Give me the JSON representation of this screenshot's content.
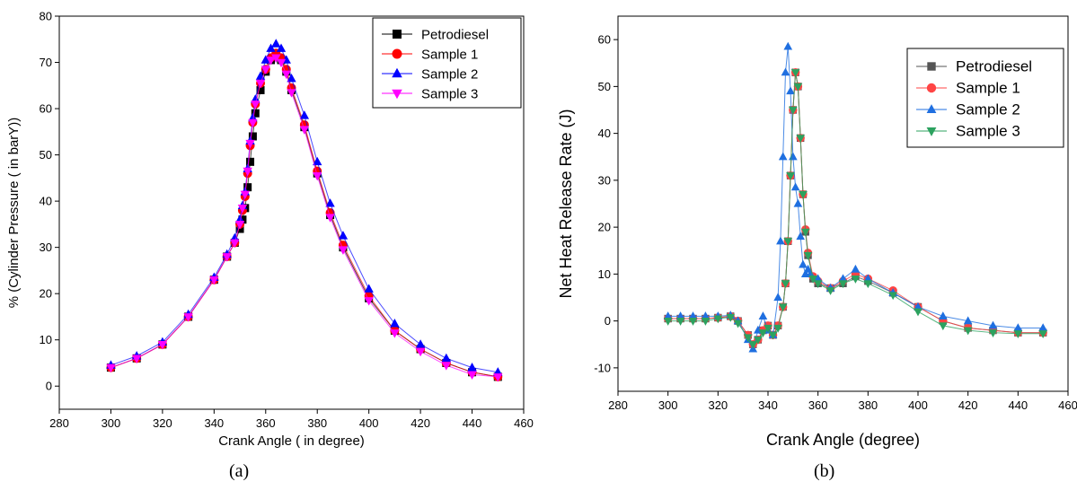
{
  "panels": {
    "a": {
      "caption": "(a)"
    },
    "b": {
      "caption": "(b)"
    }
  },
  "chart_data": [
    {
      "type": "scatter",
      "title": "",
      "xlabel": "Crank Angle ( in degree)",
      "ylabel": "% (Cylinder Pressure ( in barY))",
      "xlim": [
        280,
        460
      ],
      "ylim": [
        -5,
        80
      ],
      "xticks": [
        280,
        300,
        320,
        340,
        360,
        380,
        400,
        420,
        440,
        460
      ],
      "yticks": [
        0,
        10,
        20,
        30,
        40,
        50,
        60,
        70,
        80
      ],
      "legend_position": "top-right",
      "series": [
        {
          "name": "Petrodiesel",
          "color": "#000000",
          "marker": "square",
          "x": [
            300,
            310,
            320,
            330,
            340,
            345,
            348,
            350,
            351,
            352,
            353,
            354,
            355,
            356,
            358,
            360,
            362,
            364,
            366,
            368,
            370,
            375,
            380,
            385,
            390,
            400,
            410,
            420,
            430,
            440,
            450
          ],
          "y": [
            4,
            6,
            9,
            15,
            23,
            28,
            31,
            34,
            36,
            38.5,
            43,
            48.5,
            54,
            59,
            64,
            68,
            70.5,
            71.5,
            70.5,
            68,
            64,
            56,
            46,
            37,
            30,
            19,
            12,
            8,
            5,
            3,
            2
          ]
        },
        {
          "name": "Sample 1",
          "color": "#ff0000",
          "marker": "circle",
          "x": [
            300,
            310,
            320,
            330,
            340,
            345,
            348,
            350,
            351,
            352,
            353,
            354,
            355,
            356,
            358,
            360,
            362,
            364,
            366,
            368,
            370,
            375,
            380,
            385,
            390,
            400,
            410,
            420,
            430,
            440,
            450
          ],
          "y": [
            4,
            6,
            9,
            15,
            23,
            28,
            31,
            35,
            38,
            41,
            46,
            52,
            57,
            61,
            65.5,
            68.5,
            71,
            72,
            71,
            68.5,
            64.5,
            56.5,
            46.5,
            37.5,
            30.5,
            19.5,
            12,
            8,
            5,
            3,
            2
          ]
        },
        {
          "name": "Sample 2",
          "color": "#0000ff",
          "marker": "triangle-up",
          "x": [
            300,
            310,
            320,
            330,
            340,
            345,
            348,
            350,
            351,
            352,
            353,
            354,
            355,
            356,
            358,
            360,
            362,
            364,
            366,
            368,
            370,
            375,
            380,
            385,
            390,
            400,
            410,
            420,
            430,
            440,
            450
          ],
          "y": [
            4.5,
            6.5,
            9.5,
            15.5,
            23.5,
            28.5,
            32,
            36,
            39,
            42,
            47,
            53,
            58,
            62,
            67,
            70.5,
            73,
            74,
            73,
            70.5,
            66.5,
            58.5,
            48.5,
            39.5,
            32.5,
            21,
            13.5,
            9,
            6,
            4,
            3
          ]
        },
        {
          "name": "Sample 3",
          "color": "#ff00ff",
          "marker": "triangle-down",
          "x": [
            300,
            310,
            320,
            330,
            340,
            345,
            348,
            350,
            351,
            352,
            353,
            354,
            355,
            356,
            358,
            360,
            362,
            364,
            366,
            368,
            370,
            375,
            380,
            385,
            390,
            400,
            410,
            420,
            430,
            440,
            450
          ],
          "y": [
            4,
            6,
            9,
            15,
            23,
            28,
            31,
            35,
            38.5,
            41.5,
            46.5,
            52.5,
            57,
            61,
            65.5,
            68.5,
            70.5,
            71,
            70,
            67.5,
            63.5,
            55.5,
            45.5,
            36.5,
            29.5,
            18.5,
            11.5,
            7.5,
            4.5,
            2.5,
            2
          ]
        }
      ]
    },
    {
      "type": "line",
      "title": "",
      "xlabel": "Crank Angle (degree)",
      "ylabel": "Net Heat Release Rate (J)",
      "xlim": [
        280,
        460
      ],
      "ylim": [
        -15,
        65
      ],
      "xticks": [
        280,
        300,
        320,
        340,
        360,
        380,
        400,
        420,
        440,
        460
      ],
      "yticks": [
        -10,
        0,
        10,
        20,
        30,
        40,
        50,
        60
      ],
      "legend_position": "top-right",
      "series": [
        {
          "name": "Petrodiesel",
          "color": "#555555",
          "marker": "square",
          "x": [
            300,
            305,
            310,
            315,
            320,
            325,
            328,
            332,
            334,
            336,
            338,
            340,
            342,
            344,
            346,
            347,
            348,
            349,
            350,
            351,
            352,
            353,
            354,
            355,
            356,
            358,
            360,
            365,
            370,
            375,
            380,
            390,
            400,
            410,
            420,
            430,
            440,
            450
          ],
          "y": [
            0.5,
            0.5,
            0.5,
            0.5,
            0.7,
            1,
            0,
            -3,
            -5,
            -4,
            -2,
            -1,
            -3,
            -1,
            3,
            8,
            17,
            31,
            45,
            53,
            50,
            39,
            27,
            19,
            14,
            9,
            8,
            7,
            8,
            9.5,
            8.5,
            6,
            3,
            0,
            -1.5,
            -2,
            -2.5,
            -2.5
          ]
        },
        {
          "name": "Sample 1",
          "color": "#ff4444",
          "marker": "circle",
          "x": [
            300,
            305,
            310,
            315,
            320,
            325,
            328,
            332,
            334,
            336,
            338,
            340,
            342,
            344,
            346,
            347,
            348,
            349,
            350,
            351,
            352,
            353,
            354,
            355,
            356,
            358,
            360,
            365,
            370,
            375,
            380,
            390,
            400,
            410,
            420,
            430,
            440,
            450
          ],
          "y": [
            0.5,
            0.5,
            0.5,
            0.5,
            0.7,
            1,
            0,
            -3,
            -5,
            -4,
            -2,
            -1,
            -3,
            -1,
            3,
            8,
            17,
            31,
            45,
            53,
            50,
            39,
            27,
            19.5,
            14.5,
            9.5,
            8.5,
            7,
            8.5,
            10,
            9,
            6.5,
            3,
            0,
            -1.5,
            -2,
            -2.5,
            -2.5
          ]
        },
        {
          "name": "Sample 2",
          "color": "#1f6fe0",
          "marker": "triangle-up",
          "x": [
            300,
            305,
            310,
            315,
            320,
            325,
            328,
            332,
            334,
            336,
            338,
            340,
            342,
            344,
            345,
            346,
            347,
            348,
            349,
            350,
            351,
            352,
            353,
            354,
            355,
            356,
            357,
            360,
            365,
            370,
            375,
            380,
            390,
            400,
            410,
            420,
            430,
            440,
            450
          ],
          "y": [
            1,
            1,
            1,
            1,
            1,
            1.2,
            0,
            -4,
            -6,
            -2,
            1,
            -2,
            -3,
            5,
            17,
            35,
            53,
            58.5,
            49,
            35,
            28.5,
            25,
            18,
            12,
            10,
            11,
            10,
            9,
            7,
            9,
            11,
            9,
            6,
            3,
            1,
            0,
            -1,
            -1.5,
            -1.5
          ]
        },
        {
          "name": "Sample 3",
          "color": "#2ca25f",
          "marker": "triangle-down",
          "x": [
            300,
            305,
            310,
            315,
            320,
            325,
            328,
            332,
            334,
            336,
            338,
            340,
            342,
            344,
            346,
            347,
            348,
            349,
            350,
            351,
            352,
            353,
            354,
            355,
            356,
            358,
            360,
            365,
            370,
            375,
            380,
            390,
            400,
            410,
            420,
            430,
            440,
            450
          ],
          "y": [
            0,
            0,
            0,
            0,
            0.5,
            0.8,
            -0.5,
            -3.5,
            -5,
            -4,
            -2.5,
            -1.5,
            -3,
            -1.5,
            3,
            8,
            17,
            31,
            45,
            53,
            50,
            39,
            27,
            19,
            14,
            9,
            8,
            6.5,
            8,
            9,
            8,
            5.5,
            2,
            -1,
            -2,
            -2.5,
            -2.7,
            -2.7
          ]
        }
      ]
    }
  ]
}
